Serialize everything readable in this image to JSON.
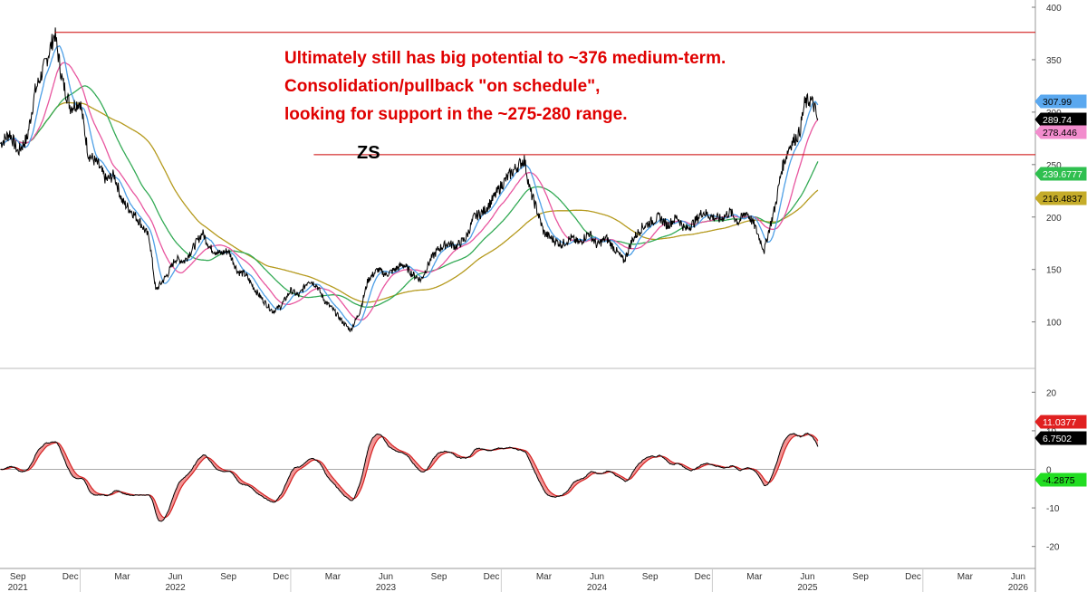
{
  "chart_data": [
    {
      "type": "line",
      "panel": "price",
      "ticker": "ZS",
      "annotation_lines": [
        "Ultimately still has big potential to ~376 medium-term.",
        "Consolidation/pullback \"on schedule\",",
        "looking for support in the ~275-280 range."
      ],
      "x_range": [
        "2021-08-15",
        "2026-07-15"
      ],
      "data_end": "2025-07-03",
      "y_range": [
        60,
        400
      ],
      "y_ticks": [
        100,
        150,
        200,
        250,
        300,
        350,
        400
      ],
      "horizontal_lines": [
        {
          "value": 376,
          "from": "2021-11-18",
          "color": "#cc0000"
        },
        {
          "value": 259.5,
          "from": "2023-02-10",
          "color": "#cc0000"
        }
      ],
      "series": [
        {
          "role": "price",
          "color": "#000000",
          "x": [
            "2021-08-16",
            "2021-09-01",
            "2021-09-15",
            "2021-10-01",
            "2021-10-15",
            "2021-11-01",
            "2021-11-18",
            "2021-12-01",
            "2021-12-15",
            "2022-01-01",
            "2022-01-15",
            "2022-02-01",
            "2022-02-15",
            "2022-03-01",
            "2022-03-15",
            "2022-04-01",
            "2022-04-15",
            "2022-05-01",
            "2022-05-12",
            "2022-06-01",
            "2022-06-15",
            "2022-07-01",
            "2022-07-15",
            "2022-08-01",
            "2022-08-15",
            "2022-09-01",
            "2022-09-15",
            "2022-10-01",
            "2022-10-15",
            "2022-11-01",
            "2022-11-15",
            "2022-12-01",
            "2022-12-15",
            "2023-01-01",
            "2023-01-15",
            "2023-02-01",
            "2023-02-15",
            "2023-03-01",
            "2023-03-15",
            "2023-04-01",
            "2023-04-15",
            "2023-05-01",
            "2023-05-15",
            "2023-06-01",
            "2023-06-15",
            "2023-07-01",
            "2023-07-15",
            "2023-08-01",
            "2023-08-15",
            "2023-09-01",
            "2023-09-15",
            "2023-10-01",
            "2023-10-15",
            "2023-11-01",
            "2023-11-15",
            "2023-12-01",
            "2023-12-15",
            "2024-01-01",
            "2024-01-15",
            "2024-02-01",
            "2024-02-10",
            "2024-02-20",
            "2024-03-01",
            "2024-03-15",
            "2024-04-01",
            "2024-04-15",
            "2024-05-01",
            "2024-05-15",
            "2024-06-01",
            "2024-06-15",
            "2024-07-01",
            "2024-07-15",
            "2024-08-01",
            "2024-08-15",
            "2024-09-01",
            "2024-09-15",
            "2024-10-01",
            "2024-10-15",
            "2024-11-01",
            "2024-11-15",
            "2024-12-01",
            "2024-12-15",
            "2025-01-01",
            "2025-01-15",
            "2025-02-01",
            "2025-02-15",
            "2025-03-01",
            "2025-03-15",
            "2025-04-01",
            "2025-04-08",
            "2025-04-20",
            "2025-05-01",
            "2025-05-15",
            "2025-06-01",
            "2025-06-10",
            "2025-06-20",
            "2025-06-27",
            "2025-07-03"
          ],
          "y": [
            270,
            280,
            262,
            275,
            320,
            345,
            375,
            330,
            305,
            310,
            260,
            250,
            235,
            240,
            215,
            205,
            195,
            180,
            130,
            145,
            160,
            158,
            170,
            185,
            170,
            165,
            168,
            148,
            145,
            130,
            120,
            110,
            115,
            130,
            125,
            140,
            135,
            120,
            112,
            100,
            92,
            110,
            140,
            150,
            145,
            150,
            155,
            145,
            140,
            160,
            170,
            175,
            172,
            180,
            200,
            205,
            215,
            230,
            240,
            250,
            255,
            225,
            210,
            185,
            178,
            174,
            180,
            175,
            185,
            173,
            180,
            170,
            158,
            178,
            190,
            195,
            200,
            192,
            200,
            188,
            195,
            205,
            200,
            198,
            205,
            195,
            205,
            192,
            168,
            185,
            210,
            245,
            268,
            280,
            308,
            312,
            305,
            290
          ]
        },
        {
          "role": "ma-fast",
          "color": "#4d9fe6",
          "tag_value": "307.99"
        },
        {
          "role": "ma-medium",
          "color": "#e8569f",
          "tag_value": "278.446"
        },
        {
          "role": "ma-slow",
          "color": "#33aa55",
          "tag_value": "239.6777"
        },
        {
          "role": "ma-long",
          "color": "#b59a1e",
          "tag_value": "216.4837"
        }
      ],
      "last_price_tag": "289.74"
    },
    {
      "type": "area",
      "panel": "oscillator",
      "y_range": [
        -25,
        25
      ],
      "y_ticks": [
        -20,
        -10,
        0,
        10,
        20
      ],
      "tags": [
        {
          "value": "11.0377",
          "color": "#e02020"
        },
        {
          "value": "6.7502",
          "color": "#000000"
        },
        {
          "value": "-4.2875",
          "color": "#22dd22"
        }
      ]
    },
    {
      "type": "axis",
      "month_ticks": [
        {
          "date": "2021-09-15",
          "label": "Sep"
        },
        {
          "date": "2021-12-15",
          "label": "Dec"
        },
        {
          "date": "2022-03-15",
          "label": "Mar"
        },
        {
          "date": "2022-06-15",
          "label": "Jun"
        },
        {
          "date": "2022-09-15",
          "label": "Sep"
        },
        {
          "date": "2022-12-15",
          "label": "Dec"
        },
        {
          "date": "2023-03-15",
          "label": "Mar"
        },
        {
          "date": "2023-06-15",
          "label": "Jun"
        },
        {
          "date": "2023-09-15",
          "label": "Sep"
        },
        {
          "date": "2023-12-15",
          "label": "Dec"
        },
        {
          "date": "2024-03-15",
          "label": "Mar"
        },
        {
          "date": "2024-06-15",
          "label": "Jun"
        },
        {
          "date": "2024-09-15",
          "label": "Sep"
        },
        {
          "date": "2024-12-15",
          "label": "Dec"
        },
        {
          "date": "2025-03-15",
          "label": "Mar"
        },
        {
          "date": "2025-06-15",
          "label": "Jun"
        },
        {
          "date": "2025-09-15",
          "label": "Sep"
        },
        {
          "date": "2025-12-15",
          "label": "Dec"
        },
        {
          "date": "2026-03-15",
          "label": "Mar"
        },
        {
          "date": "2026-06-15",
          "label": "Jun"
        }
      ],
      "year_labels": [
        {
          "date": "2021-09-15",
          "label": "2021"
        },
        {
          "date": "2022-06-15",
          "label": "2022"
        },
        {
          "date": "2023-06-15",
          "label": "2023"
        },
        {
          "date": "2024-06-15",
          "label": "2024"
        },
        {
          "date": "2025-06-15",
          "label": "2025"
        },
        {
          "date": "2026-06-15",
          "label": "2026"
        }
      ]
    }
  ]
}
